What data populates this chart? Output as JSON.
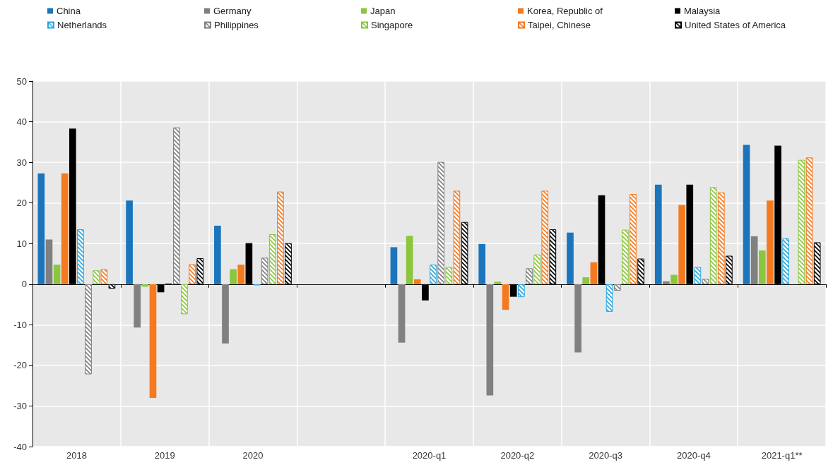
{
  "chart_data": {
    "type": "bar",
    "categories": [
      "2018",
      "2019",
      "2020",
      null,
      "2020-q1",
      "2020-q2",
      "2020-q3",
      "2020-q4",
      "2021-q1**"
    ],
    "series": [
      {
        "name": "China",
        "color": "#1a75bc",
        "values": [
          27.3,
          20.6,
          14.4,
          null,
          9.1,
          9.9,
          12.7,
          24.5,
          34.3
        ]
      },
      {
        "name": "Germany",
        "color": "#808080",
        "values": [
          11,
          -10.7,
          -14.6,
          null,
          -14.4,
          -27.4,
          -16.8,
          0.7,
          11.8
        ]
      },
      {
        "name": "Japan",
        "color": "#8cc63f",
        "values": [
          4.8,
          -0.6,
          3.7,
          null,
          11.9,
          0.6,
          1.7,
          2.3,
          8.3
        ]
      },
      {
        "name": "Korea, Republic of",
        "color": "#f47a20",
        "values": [
          27.3,
          -28,
          4.8,
          null,
          1.2,
          -6.3,
          5.4,
          19.5,
          20.6
        ]
      },
      {
        "name": "Malaysia",
        "color": "#000000",
        "values": [
          38.3,
          -2,
          10.1,
          null,
          -4,
          -3.1,
          21.9,
          24.5,
          34.1
        ]
      },
      {
        "name": "Netherlands",
        "color": "#29a9e0",
        "values": [
          13.5,
          0.3,
          -0.3,
          null,
          4.8,
          -3.2,
          -6.8,
          4.2,
          11.3
        ]
      },
      {
        "name": "Philippines",
        "color": "#808080",
        "values": [
          -22.2,
          38.6,
          6.5,
          null,
          30.1,
          3.9,
          -1.6,
          1.3,
          null
        ]
      },
      {
        "name": "Singapore",
        "color": "#8cc63f",
        "values": [
          3.4,
          -7.4,
          12.3,
          null,
          4.2,
          7.3,
          13.4,
          23.9,
          30.6
        ]
      },
      {
        "name": "Taipei, Chinese",
        "color": "#f47a20",
        "values": [
          3.7,
          4.9,
          22.8,
          null,
          23,
          23,
          22.2,
          22.6,
          31.2
        ]
      },
      {
        "name": "United States of America",
        "color": "#000000",
        "values": [
          -1.1,
          6.4,
          10.1,
          null,
          15.3,
          13.5,
          6.3,
          7,
          10.3
        ]
      }
    ],
    "ylim": [
      -40,
      50
    ],
    "yticks": [
      -40,
      -30,
      -20,
      -10,
      0,
      10,
      20,
      30,
      40,
      50
    ],
    "grid": true,
    "legend": "top"
  }
}
